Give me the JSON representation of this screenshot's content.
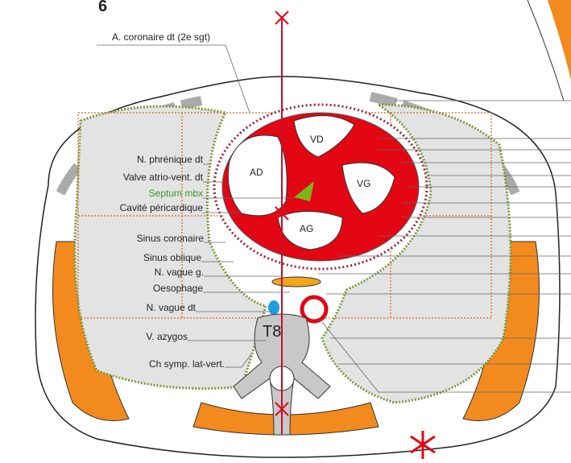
{
  "figure_number": "6",
  "labels": {
    "coronary": "A. coronaire dt (2e sgt)",
    "phrenic": "N. phrénique dt",
    "valve": "Valve atrio-vent. dt",
    "septum": "Septum mbx",
    "pericardial": "Cavité péricardique",
    "coronary_sinus": "Sinus coronaire",
    "oblique_sinus": "Sinus oblique",
    "vagus_left": "N. vague g.",
    "oesophagus": "Oesophage",
    "vagus_right": "N. vague dt",
    "azygos": "V. azygos",
    "sympathetic": "Ch symp. lat-vert."
  },
  "chambers": {
    "rv": "VD",
    "ra": "AD",
    "lv": "VG",
    "la": "AG"
  },
  "vertebra": "T8"
}
